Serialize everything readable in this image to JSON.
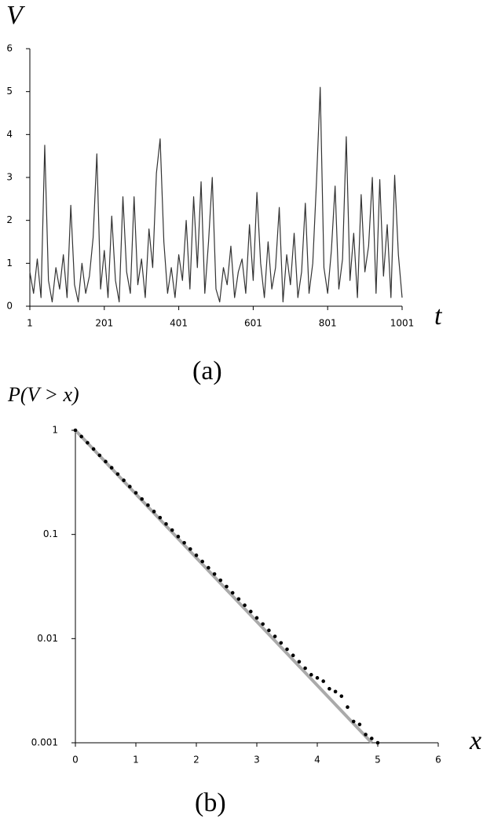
{
  "chart_data": [
    {
      "type": "line",
      "y_label": "V",
      "x_label": "t",
      "caption": "(a)",
      "x": [
        1,
        11,
        21,
        31,
        41,
        51,
        61,
        71,
        81,
        91,
        101,
        111,
        121,
        131,
        141,
        151,
        161,
        171,
        181,
        191,
        201,
        211,
        221,
        231,
        241,
        251,
        261,
        271,
        281,
        291,
        301,
        311,
        321,
        331,
        341,
        351,
        361,
        371,
        381,
        391,
        401,
        411,
        421,
        431,
        441,
        451,
        461,
        471,
        481,
        491,
        501,
        511,
        521,
        531,
        541,
        551,
        561,
        571,
        581,
        591,
        601,
        611,
        621,
        631,
        641,
        651,
        661,
        671,
        681,
        691,
        701,
        711,
        721,
        731,
        741,
        751,
        761,
        771,
        781,
        791,
        801,
        811,
        821,
        831,
        841,
        851,
        861,
        871,
        881,
        891,
        901,
        911,
        921,
        931,
        941,
        951,
        961,
        971,
        981,
        991,
        1001
      ],
      "series": [
        {
          "color": "#333333",
          "values": [
            0.8,
            0.3,
            1.1,
            0.2,
            3.75,
            0.6,
            0.1,
            0.9,
            0.4,
            1.2,
            0.2,
            2.35,
            0.5,
            0.1,
            1.0,
            0.3,
            0.7,
            1.6,
            3.55,
            0.4,
            1.3,
            0.2,
            2.1,
            0.6,
            0.1,
            2.55,
            0.8,
            0.3,
            2.55,
            0.5,
            1.1,
            0.2,
            1.8,
            0.9,
            3.1,
            3.9,
            1.5,
            0.3,
            0.9,
            0.2,
            1.2,
            0.6,
            2.0,
            0.4,
            2.55,
            0.9,
            2.9,
            0.3,
            1.5,
            3.0,
            0.4,
            0.1,
            0.9,
            0.5,
            1.4,
            0.2,
            0.8,
            1.1,
            0.3,
            1.9,
            0.6,
            2.65,
            1.0,
            0.2,
            1.5,
            0.4,
            0.9,
            2.3,
            0.1,
            1.2,
            0.5,
            1.7,
            0.2,
            0.8,
            2.4,
            0.3,
            1.0,
            2.9,
            5.1,
            0.9,
            0.3,
            1.3,
            2.8,
            0.4,
            1.1,
            3.95,
            0.6,
            1.7,
            0.2,
            2.6,
            0.8,
            1.4,
            3.0,
            0.3,
            2.95,
            0.7,
            1.9,
            0.2,
            3.05,
            1.2,
            0.2
          ]
        }
      ],
      "xlim": [
        1,
        1001
      ],
      "xticks": [
        1,
        201,
        401,
        601,
        801,
        1001
      ],
      "ylim": [
        0,
        6
      ],
      "yticks": [
        0,
        1,
        2,
        3,
        4,
        5,
        6
      ]
    },
    {
      "type": "scatter",
      "yscale": "log",
      "y_label": "P(V > x)",
      "x_label": "x",
      "caption": "(b)",
      "series": [
        {
          "mode": "line",
          "color": "#aaaaaa",
          "x": [
            0,
            4.9
          ],
          "values": [
            1,
            0.001
          ]
        },
        {
          "mode": "markers",
          "color": "#000000",
          "x": [
            0,
            0.1,
            0.2,
            0.3,
            0.4,
            0.5,
            0.6,
            0.7,
            0.8,
            0.9,
            1.0,
            1.1,
            1.2,
            1.3,
            1.4,
            1.5,
            1.6,
            1.7,
            1.8,
            1.9,
            2.0,
            2.1,
            2.2,
            2.3,
            2.4,
            2.5,
            2.6,
            2.7,
            2.8,
            2.9,
            3.0,
            3.1,
            3.2,
            3.3,
            3.4,
            3.5,
            3.6,
            3.7,
            3.8,
            3.9,
            4.0,
            4.1,
            4.2,
            4.3,
            4.4,
            4.5,
            4.6,
            4.7,
            4.8,
            4.9,
            5.0
          ],
          "values": [
            1,
            0.871,
            0.759,
            0.661,
            0.575,
            0.501,
            0.437,
            0.38,
            0.331,
            0.288,
            0.251,
            0.219,
            0.191,
            0.166,
            0.145,
            0.126,
            0.11,
            0.0955,
            0.0832,
            0.0724,
            0.0631,
            0.055,
            0.0479,
            0.0417,
            0.0363,
            0.0316,
            0.0275,
            0.024,
            0.0209,
            0.0182,
            0.0158,
            0.0138,
            0.012,
            0.0105,
            0.0091,
            0.0079,
            0.0069,
            0.006,
            0.0052,
            0.0045,
            0.0042,
            0.0039,
            0.0033,
            0.0031,
            0.0028,
            0.0022,
            0.0016,
            0.0015,
            0.0012,
            0.0011,
            0.001
          ]
        }
      ],
      "xlim": [
        0,
        6
      ],
      "xticks": [
        0,
        1,
        2,
        3,
        4,
        5,
        6
      ],
      "ylim": [
        0.001,
        1
      ],
      "yticks": [
        1,
        0.1,
        0.01,
        0.001
      ]
    }
  ]
}
